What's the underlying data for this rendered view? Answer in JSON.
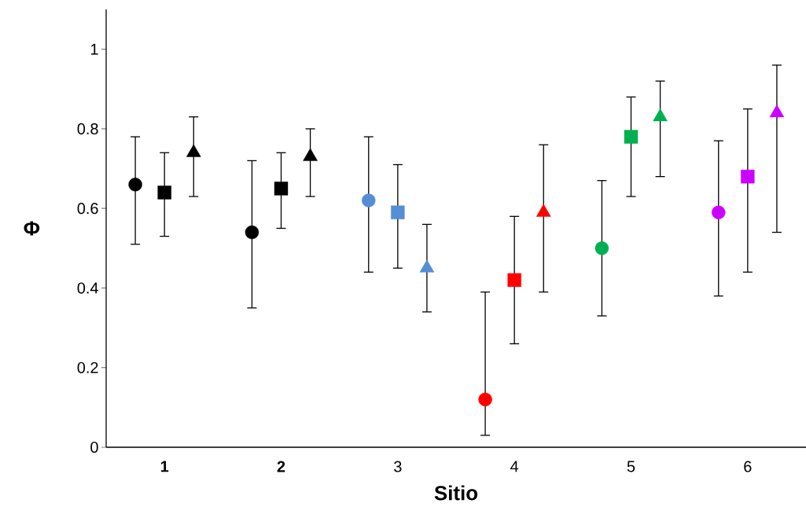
{
  "chart_data": {
    "type": "scatter",
    "xlabel": "Sitio",
    "ylabel": "Φ",
    "categories": [
      "**1**",
      "**2**",
      "3",
      "4",
      "5",
      "6"
    ],
    "ylim": [
      0,
      1.1
    ],
    "yticks": [
      0,
      0.2,
      0.4,
      0.6,
      0.8,
      1
    ],
    "grid": false,
    "series": [
      {
        "marker": "circle",
        "colors": [
          "#000000",
          "#000000",
          "#558ed5",
          "#ff0000",
          "#00b050",
          "#cc00ff"
        ],
        "values": [
          0.66,
          0.54,
          0.62,
          0.12,
          0.5,
          0.59
        ],
        "errors": [
          [
            0.51,
            0.78
          ],
          [
            0.35,
            0.72
          ],
          [
            0.44,
            0.78
          ],
          [
            0.03,
            0.39
          ],
          [
            0.33,
            0.67
          ],
          [
            0.38,
            0.77
          ]
        ]
      },
      {
        "marker": "square",
        "colors": [
          "#000000",
          "#000000",
          "#558ed5",
          "#ff0000",
          "#00b050",
          "#cc00ff"
        ],
        "values": [
          0.64,
          0.65,
          0.59,
          0.42,
          0.78,
          0.68
        ],
        "errors": [
          [
            0.53,
            0.74
          ],
          [
            0.55,
            0.74
          ],
          [
            0.45,
            0.71
          ],
          [
            0.26,
            0.58
          ],
          [
            0.63,
            0.88
          ],
          [
            0.44,
            0.85
          ]
        ]
      },
      {
        "marker": "triangle",
        "colors": [
          "#000000",
          "#000000",
          "#558ed5",
          "#ff0000",
          "#00b050",
          "#cc00ff"
        ],
        "values": [
          0.74,
          0.73,
          0.45,
          0.59,
          0.83,
          0.84
        ],
        "errors": [
          [
            0.63,
            0.83
          ],
          [
            0.63,
            0.8
          ],
          [
            0.34,
            0.56
          ],
          [
            0.39,
            0.76
          ],
          [
            0.68,
            0.92
          ],
          [
            0.54,
            0.96
          ]
        ]
      }
    ]
  }
}
